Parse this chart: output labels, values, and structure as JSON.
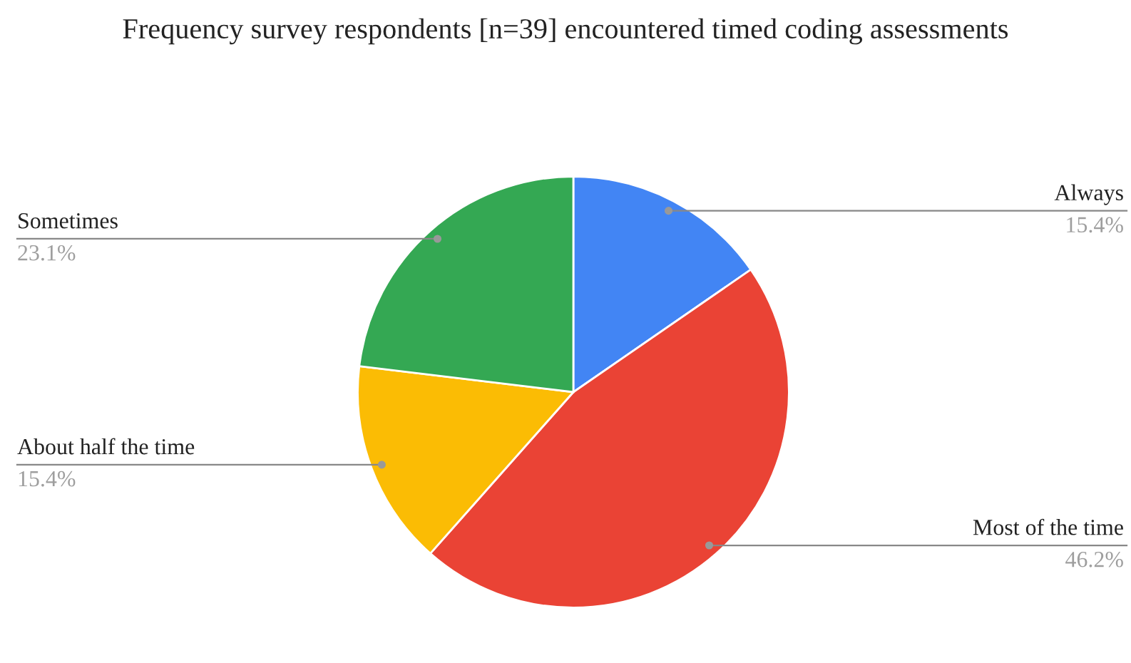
{
  "chart_data": {
    "type": "pie",
    "title": "Frequency survey respondents [n=39] encountered timed coding assessments",
    "categories": [
      "Always",
      "Most of the time",
      "About half the time",
      "Sometimes"
    ],
    "values": [
      15.4,
      46.2,
      15.4,
      23.1
    ],
    "colors": [
      "#4285f4",
      "#ea4335",
      "#fbbc04",
      "#34a853"
    ],
    "value_labels": [
      "15.4%",
      "46.2%",
      "15.4%",
      "23.1%"
    ],
    "legend": false
  }
}
